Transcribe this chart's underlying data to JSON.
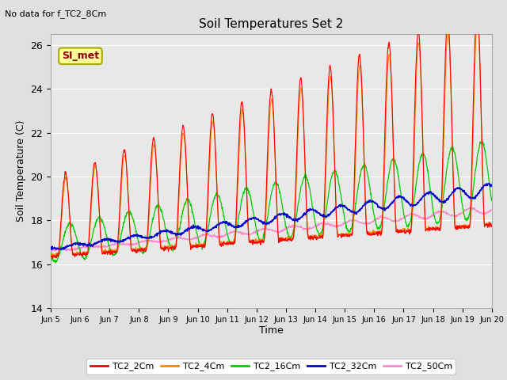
{
  "title": "Soil Temperatures Set 2",
  "subtitle": "No data for f_TC2_8Cm",
  "xlabel": "Time",
  "ylabel": "Soil Temperature (C)",
  "ylim": [
    14,
    26.5
  ],
  "yticks": [
    14,
    16,
    18,
    20,
    22,
    24,
    26
  ],
  "bg_color": "#e0e0e0",
  "plot_bg_color": "#e8e8e8",
  "legend_entries": [
    "TC2_2Cm",
    "TC2_4Cm",
    "TC2_16Cm",
    "TC2_32Cm",
    "TC2_50Cm"
  ],
  "line_colors": [
    "#ff0000",
    "#ff8800",
    "#00cc00",
    "#0000cc",
    "#ff88cc"
  ],
  "annotation_text": "SI_met",
  "annotation_color": "#880000",
  "annotation_bg": "#ffff99",
  "x_tick_labels": [
    "Jun 5",
    "Jun 6",
    "Jun 7",
    "Jun 8",
    "Jun 9",
    "Jun 10",
    "Jun 11",
    "Jun 12",
    "Jun 13",
    "Jun 14",
    "Jun 15",
    "Jun 16",
    "Jun 17",
    "Jun 18",
    "Jun 19",
    "Jun 20"
  ]
}
